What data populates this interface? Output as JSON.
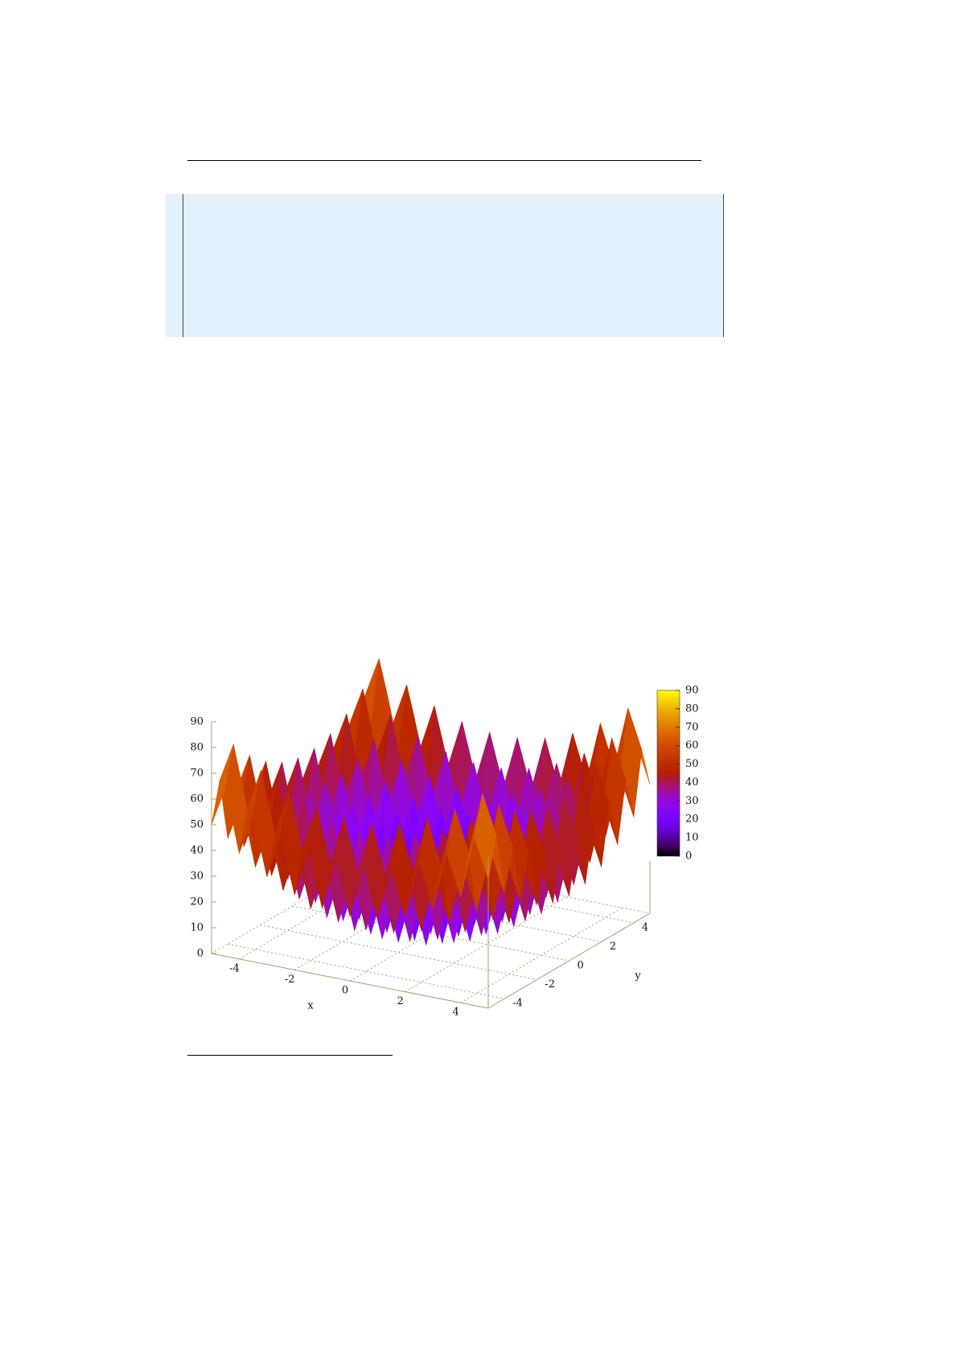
{
  "chart_data": {
    "type": "surface",
    "xlabel": "x",
    "ylabel": "y",
    "xlim": [
      -5,
      5
    ],
    "ylim": [
      -5,
      5
    ],
    "zlim": [
      0,
      90
    ],
    "cblim": [
      0,
      90
    ],
    "xticks": [
      -4,
      -2,
      0,
      2,
      4
    ],
    "yticks": [
      -4,
      -2,
      0,
      2,
      4
    ],
    "zticks": [
      0,
      10,
      20,
      30,
      40,
      50,
      60,
      70,
      80,
      90
    ],
    "cbticks": [
      0,
      10,
      20,
      30,
      40,
      50,
      60,
      70,
      80,
      90
    ],
    "x": [
      -5,
      -4.5,
      -4,
      -3.5,
      -3,
      -2.5,
      -2,
      -1.5,
      -1,
      -0.5,
      0,
      0.5,
      1,
      1.5,
      2,
      2.5,
      3,
      3.5,
      4,
      4.5,
      5
    ],
    "y": [
      -5,
      -4.5,
      -4,
      -3.5,
      -3,
      -2.5,
      -2,
      -1.5,
      -1,
      -0.5,
      0,
      0.5,
      1,
      1.5,
      2,
      2.5,
      3,
      3.5,
      4,
      4.5,
      5
    ],
    "z": [
      [
        50,
        65.25,
        41,
        57.25,
        34,
        51.25,
        29,
        47.25,
        26,
        45.25,
        25,
        45.25,
        26,
        47.25,
        29,
        51.25,
        34,
        57.25,
        41,
        65.25,
        50
      ],
      [
        65.25,
        80.5,
        56.25,
        72.5,
        49.25,
        66.5,
        44.25,
        62.5,
        41.25,
        60.5,
        40.25,
        60.5,
        41.25,
        62.5,
        44.25,
        66.5,
        49.25,
        72.5,
        56.25,
        80.5,
        65.25
      ],
      [
        41,
        56.25,
        32,
        48.25,
        25,
        42.25,
        20,
        38.25,
        17,
        36.25,
        16,
        36.25,
        17,
        38.25,
        20,
        42.25,
        25,
        48.25,
        32,
        56.25,
        41
      ],
      [
        57.25,
        72.5,
        48.25,
        64.5,
        41.25,
        58.5,
        36.25,
        54.5,
        33.25,
        52.5,
        32.25,
        52.5,
        33.25,
        54.5,
        36.25,
        58.5,
        41.25,
        64.5,
        48.25,
        72.5,
        57.25
      ],
      [
        34,
        49.25,
        25,
        41.25,
        18,
        35.25,
        13,
        31.25,
        10,
        29.25,
        9,
        29.25,
        10,
        31.25,
        13,
        35.25,
        18,
        41.25,
        25,
        49.25,
        34
      ],
      [
        51.25,
        66.5,
        42.25,
        58.5,
        35.25,
        52.5,
        30.25,
        48.5,
        27.25,
        46.5,
        26.25,
        46.5,
        27.25,
        48.5,
        30.25,
        52.5,
        35.25,
        58.5,
        42.25,
        66.5,
        51.25
      ],
      [
        29,
        44.25,
        20,
        36.25,
        13,
        30.25,
        8,
        26.25,
        5,
        24.25,
        4,
        24.25,
        5,
        26.25,
        8,
        30.25,
        13,
        36.25,
        20,
        44.25,
        29
      ],
      [
        47.25,
        62.5,
        38.25,
        54.5,
        31.25,
        48.5,
        26.25,
        44.5,
        23.25,
        42.5,
        22.25,
        42.5,
        23.25,
        44.5,
        26.25,
        48.5,
        31.25,
        54.5,
        38.25,
        62.5,
        47.25
      ],
      [
        26,
        41.25,
        17,
        33.25,
        10,
        27.25,
        5,
        23.25,
        2,
        21.25,
        1,
        21.25,
        2,
        23.25,
        5,
        27.25,
        10,
        33.25,
        17,
        41.25,
        26
      ],
      [
        45.25,
        60.5,
        36.25,
        52.5,
        29.25,
        46.5,
        24.25,
        42.5,
        21.25,
        40.5,
        20.25,
        40.5,
        21.25,
        42.5,
        24.25,
        46.5,
        29.25,
        52.5,
        36.25,
        60.5,
        45.25
      ],
      [
        25,
        40.25,
        16,
        32.25,
        9,
        26.25,
        4,
        22.25,
        1,
        20.25,
        0,
        20.25,
        1,
        22.25,
        4,
        26.25,
        9,
        32.25,
        16,
        40.25,
        25
      ],
      [
        45.25,
        60.5,
        36.25,
        52.5,
        29.25,
        46.5,
        24.25,
        42.5,
        21.25,
        40.5,
        20.25,
        40.5,
        21.25,
        42.5,
        24.25,
        46.5,
        29.25,
        52.5,
        36.25,
        60.5,
        45.25
      ],
      [
        26,
        41.25,
        17,
        33.25,
        10,
        27.25,
        5,
        23.25,
        2,
        21.25,
        1,
        21.25,
        2,
        23.25,
        5,
        27.25,
        10,
        33.25,
        17,
        41.25,
        26
      ],
      [
        47.25,
        62.5,
        38.25,
        54.5,
        31.25,
        48.5,
        26.25,
        44.5,
        23.25,
        42.5,
        22.25,
        42.5,
        23.25,
        44.5,
        26.25,
        48.5,
        31.25,
        54.5,
        38.25,
        62.5,
        47.25
      ],
      [
        29,
        44.25,
        20,
        36.25,
        13,
        30.25,
        8,
        26.25,
        5,
        24.25,
        4,
        24.25,
        5,
        26.25,
        8,
        30.25,
        13,
        36.25,
        20,
        44.25,
        29
      ],
      [
        51.25,
        66.5,
        42.25,
        58.5,
        35.25,
        52.5,
        30.25,
        48.5,
        27.25,
        46.5,
        26.25,
        46.5,
        27.25,
        48.5,
        30.25,
        52.5,
        35.25,
        58.5,
        42.25,
        66.5,
        51.25
      ],
      [
        34,
        49.25,
        25,
        41.25,
        18,
        35.25,
        13,
        31.25,
        10,
        29.25,
        9,
        29.25,
        10,
        31.25,
        13,
        35.25,
        18,
        41.25,
        25,
        49.25,
        34
      ],
      [
        57.25,
        72.5,
        48.25,
        64.5,
        41.25,
        58.5,
        36.25,
        54.5,
        33.25,
        52.5,
        32.25,
        52.5,
        33.25,
        54.5,
        36.25,
        58.5,
        41.25,
        64.5,
        48.25,
        72.5,
        57.25
      ],
      [
        41,
        56.25,
        32,
        48.25,
        25,
        42.25,
        20,
        38.25,
        17,
        36.25,
        16,
        36.25,
        17,
        38.25,
        20,
        42.25,
        25,
        48.25,
        32,
        56.25,
        41
      ],
      [
        65.25,
        80.5,
        56.25,
        72.5,
        49.25,
        66.5,
        44.25,
        62.5,
        41.25,
        60.5,
        40.25,
        60.5,
        41.25,
        62.5,
        44.25,
        66.5,
        49.25,
        72.5,
        56.25,
        80.5,
        65.25
      ],
      [
        50,
        65.25,
        41,
        57.25,
        34,
        51.25,
        29,
        47.25,
        26,
        45.25,
        25,
        45.25,
        26,
        47.25,
        29,
        51.25,
        34,
        57.25,
        41,
        65.25,
        50
      ]
    ]
  }
}
